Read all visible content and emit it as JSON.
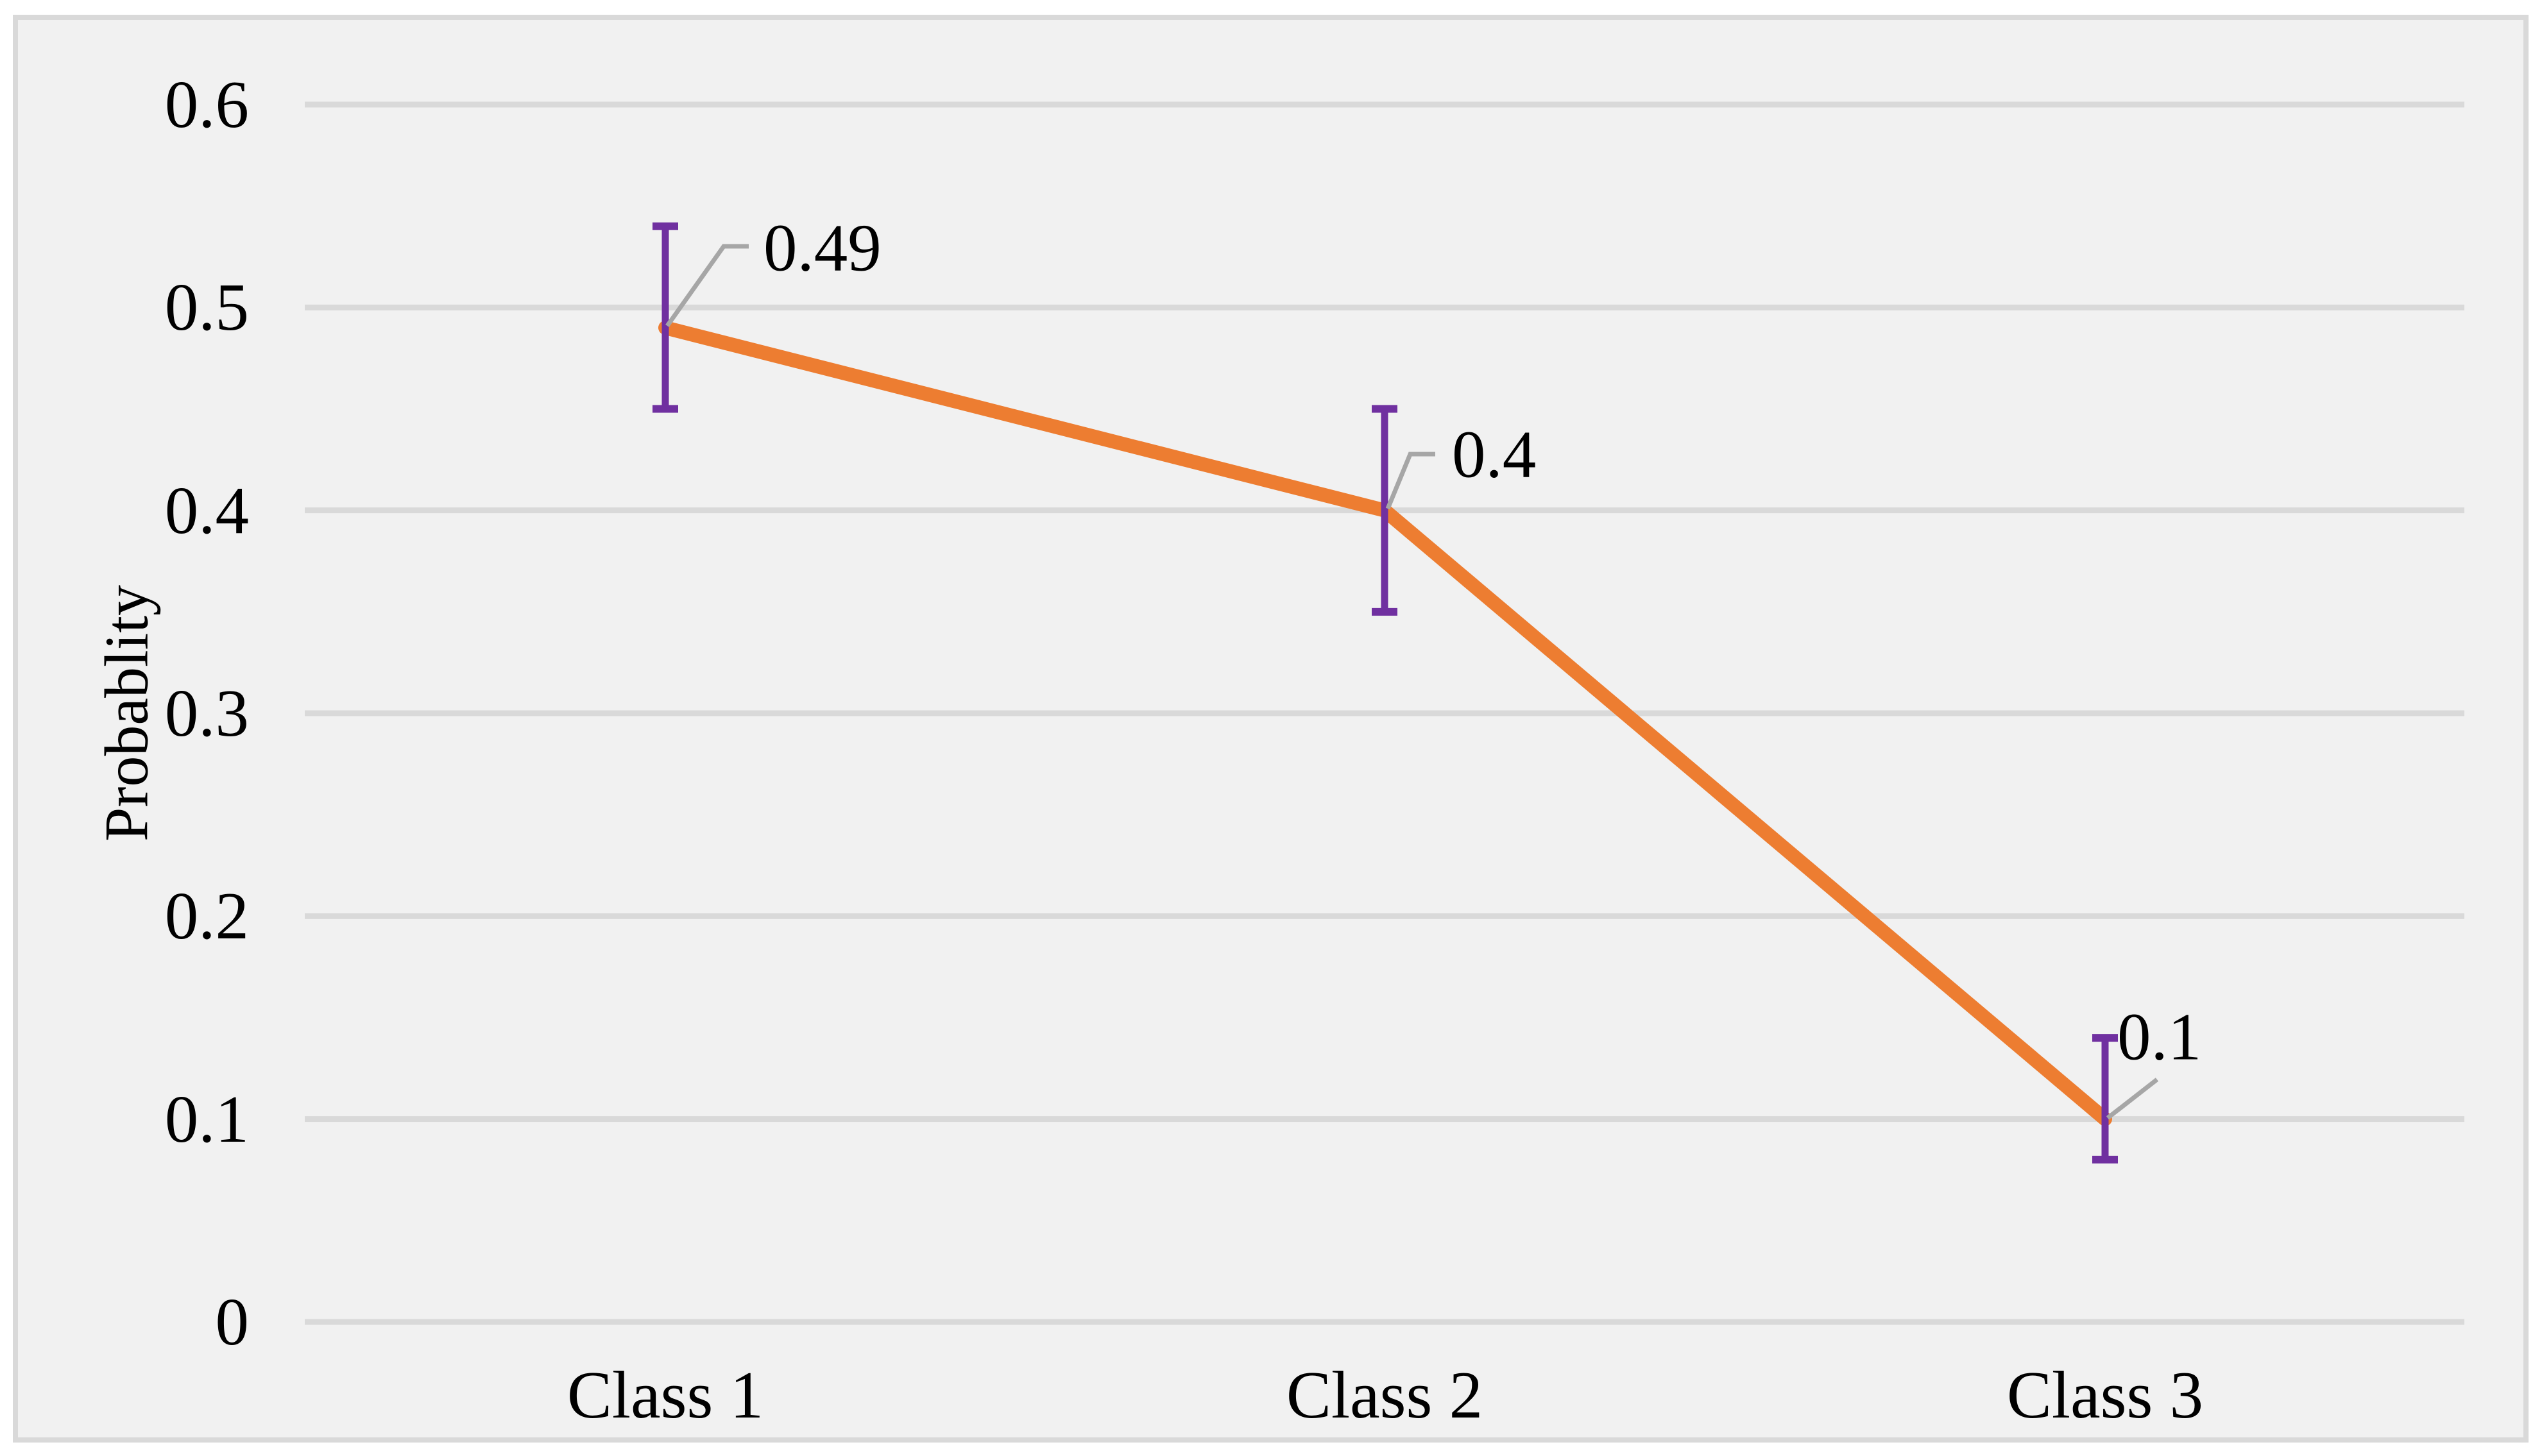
{
  "figure": {
    "background": "#FFFFFF",
    "plot_background": "#F1F1F1",
    "frame_border_color": "#D9D9D9"
  },
  "chart_data": {
    "type": "line",
    "title": "",
    "xlabel": "",
    "ylabel": "Probablity",
    "categories": [
      "Class 1",
      "Class 2",
      "Class 3"
    ],
    "series": [
      {
        "name": "Probability",
        "values": [
          0.49,
          0.4,
          0.1
        ],
        "color": "#ED7D31",
        "data_labels": [
          "0.49",
          "0.4",
          "0.1"
        ]
      }
    ],
    "error_bars": {
      "color": "#7030A0",
      "low": [
        0.45,
        0.35,
        0.08
      ],
      "high": [
        0.54,
        0.45,
        0.14
      ]
    },
    "y_axis": {
      "min": 0,
      "max": 0.6,
      "step": 0.1,
      "tick_labels": [
        "0",
        "0.1",
        "0.2",
        "0.3",
        "0.4",
        "0.5",
        "0.6"
      ]
    },
    "grid": true,
    "legend": false,
    "gridline_color": "#D9D9D9",
    "leader_line_color": "#A6A6A6",
    "text_color": "#000000"
  }
}
